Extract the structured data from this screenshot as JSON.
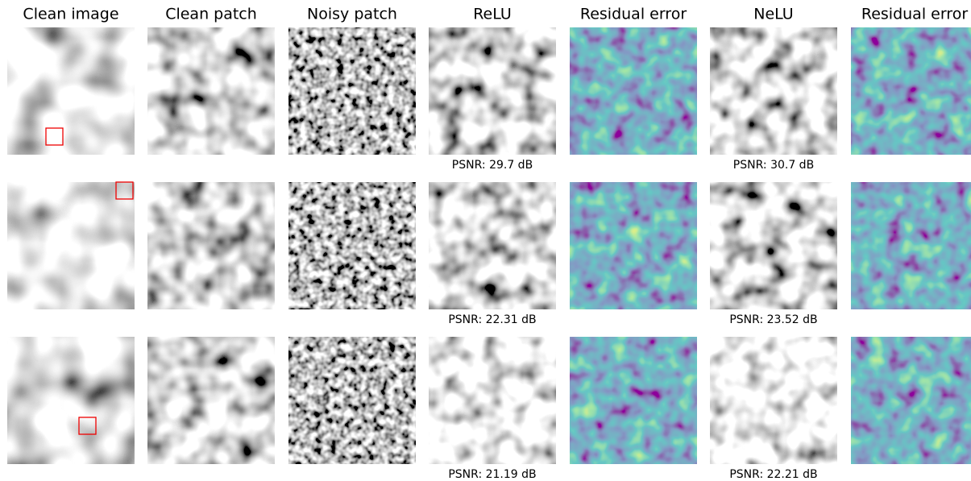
{
  "columns": [
    "Clean image",
    "Clean patch",
    "Noisy patch",
    "ReLU",
    "Residual error",
    "NeLU",
    "Residual error"
  ],
  "rows": [
    {
      "relu_psnr": "PSNR: 29.7 dB",
      "nelu_psnr": "PSNR: 30.7 dB"
    },
    {
      "relu_psnr": "PSNR: 22.31 dB",
      "nelu_psnr": "PSNR: 23.52 dB"
    },
    {
      "relu_psnr": "PSNR: 21.19 dB",
      "nelu_psnr": "PSNR: 22.21 dB"
    }
  ]
}
